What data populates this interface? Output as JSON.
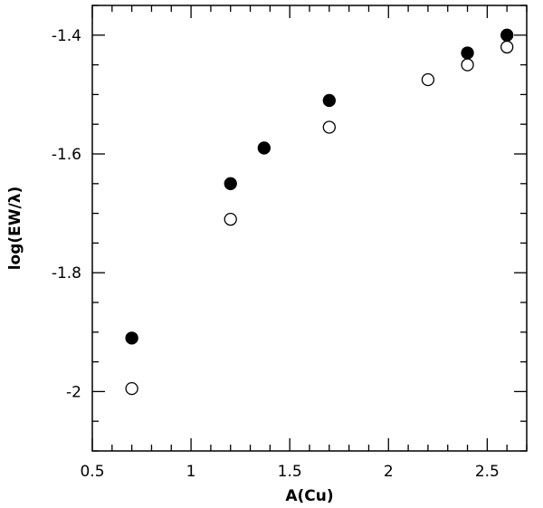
{
  "chart_data": {
    "type": "scatter",
    "title": "",
    "xlabel": "A(Cu)",
    "ylabel": "log(EW/λ)",
    "xlim": [
      0.5,
      2.7
    ],
    "ylim": [
      -2.1,
      -1.35
    ],
    "x_ticks": [
      0.5,
      1,
      1.5,
      2,
      2.5
    ],
    "x_tick_labels": [
      "0.5",
      "1",
      "1.5",
      "2",
      "2.5"
    ],
    "y_ticks": [
      -2,
      -1.8,
      -1.6,
      -1.4
    ],
    "y_tick_labels": [
      "-2",
      "-1.8",
      "-1.6",
      "-1.4"
    ],
    "grid": false,
    "legend": "none",
    "series": [
      {
        "marker": "filled-circle",
        "color": "#000000",
        "points": [
          {
            "x": 0.7,
            "y": -1.91
          },
          {
            "x": 1.2,
            "y": -1.65
          },
          {
            "x": 1.37,
            "y": -1.59
          },
          {
            "x": 1.7,
            "y": -1.51
          },
          {
            "x": 2.4,
            "y": -1.43
          },
          {
            "x": 2.6,
            "y": -1.4
          }
        ]
      },
      {
        "marker": "open-circle",
        "color": "#000000",
        "points": [
          {
            "x": 0.7,
            "y": -1.995
          },
          {
            "x": 1.2,
            "y": -1.71
          },
          {
            "x": 1.7,
            "y": -1.555
          },
          {
            "x": 2.2,
            "y": -1.475
          },
          {
            "x": 2.4,
            "y": -1.45
          },
          {
            "x": 2.6,
            "y": -1.42
          }
        ]
      }
    ]
  }
}
